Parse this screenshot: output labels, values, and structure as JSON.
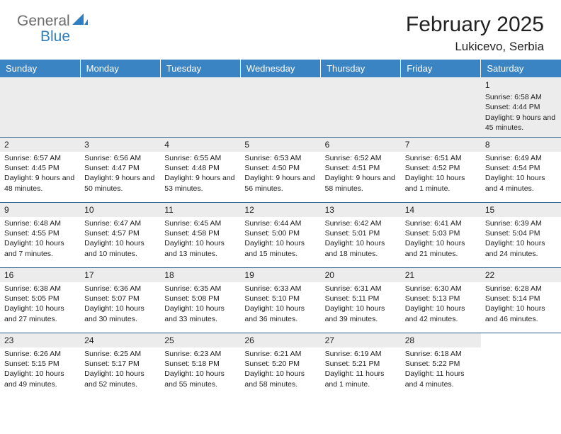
{
  "logo": {
    "text1": "General",
    "text2": "Blue",
    "icon_color": "#2d7fc1"
  },
  "title": "February 2025",
  "location": "Lukicevo, Serbia",
  "colors": {
    "header_bg": "#3b84c4",
    "header_text": "#ffffff",
    "daynum_bg": "#ececec",
    "cell_border": "#2d5f8f",
    "body_text": "#222222"
  },
  "day_headers": [
    "Sunday",
    "Monday",
    "Tuesday",
    "Wednesday",
    "Thursday",
    "Friday",
    "Saturday"
  ],
  "weeks": [
    [
      null,
      null,
      null,
      null,
      null,
      null,
      {
        "n": "1",
        "sunrise": "6:58 AM",
        "sunset": "4:44 PM",
        "daylight": "9 hours and 45 minutes."
      }
    ],
    [
      {
        "n": "2",
        "sunrise": "6:57 AM",
        "sunset": "4:45 PM",
        "daylight": "9 hours and 48 minutes."
      },
      {
        "n": "3",
        "sunrise": "6:56 AM",
        "sunset": "4:47 PM",
        "daylight": "9 hours and 50 minutes."
      },
      {
        "n": "4",
        "sunrise": "6:55 AM",
        "sunset": "4:48 PM",
        "daylight": "9 hours and 53 minutes."
      },
      {
        "n": "5",
        "sunrise": "6:53 AM",
        "sunset": "4:50 PM",
        "daylight": "9 hours and 56 minutes."
      },
      {
        "n": "6",
        "sunrise": "6:52 AM",
        "sunset": "4:51 PM",
        "daylight": "9 hours and 58 minutes."
      },
      {
        "n": "7",
        "sunrise": "6:51 AM",
        "sunset": "4:52 PM",
        "daylight": "10 hours and 1 minute."
      },
      {
        "n": "8",
        "sunrise": "6:49 AM",
        "sunset": "4:54 PM",
        "daylight": "10 hours and 4 minutes."
      }
    ],
    [
      {
        "n": "9",
        "sunrise": "6:48 AM",
        "sunset": "4:55 PM",
        "daylight": "10 hours and 7 minutes."
      },
      {
        "n": "10",
        "sunrise": "6:47 AM",
        "sunset": "4:57 PM",
        "daylight": "10 hours and 10 minutes."
      },
      {
        "n": "11",
        "sunrise": "6:45 AM",
        "sunset": "4:58 PM",
        "daylight": "10 hours and 13 minutes."
      },
      {
        "n": "12",
        "sunrise": "6:44 AM",
        "sunset": "5:00 PM",
        "daylight": "10 hours and 15 minutes."
      },
      {
        "n": "13",
        "sunrise": "6:42 AM",
        "sunset": "5:01 PM",
        "daylight": "10 hours and 18 minutes."
      },
      {
        "n": "14",
        "sunrise": "6:41 AM",
        "sunset": "5:03 PM",
        "daylight": "10 hours and 21 minutes."
      },
      {
        "n": "15",
        "sunrise": "6:39 AM",
        "sunset": "5:04 PM",
        "daylight": "10 hours and 24 minutes."
      }
    ],
    [
      {
        "n": "16",
        "sunrise": "6:38 AM",
        "sunset": "5:05 PM",
        "daylight": "10 hours and 27 minutes."
      },
      {
        "n": "17",
        "sunrise": "6:36 AM",
        "sunset": "5:07 PM",
        "daylight": "10 hours and 30 minutes."
      },
      {
        "n": "18",
        "sunrise": "6:35 AM",
        "sunset": "5:08 PM",
        "daylight": "10 hours and 33 minutes."
      },
      {
        "n": "19",
        "sunrise": "6:33 AM",
        "sunset": "5:10 PM",
        "daylight": "10 hours and 36 minutes."
      },
      {
        "n": "20",
        "sunrise": "6:31 AM",
        "sunset": "5:11 PM",
        "daylight": "10 hours and 39 minutes."
      },
      {
        "n": "21",
        "sunrise": "6:30 AM",
        "sunset": "5:13 PM",
        "daylight": "10 hours and 42 minutes."
      },
      {
        "n": "22",
        "sunrise": "6:28 AM",
        "sunset": "5:14 PM",
        "daylight": "10 hours and 46 minutes."
      }
    ],
    [
      {
        "n": "23",
        "sunrise": "6:26 AM",
        "sunset": "5:15 PM",
        "daylight": "10 hours and 49 minutes."
      },
      {
        "n": "24",
        "sunrise": "6:25 AM",
        "sunset": "5:17 PM",
        "daylight": "10 hours and 52 minutes."
      },
      {
        "n": "25",
        "sunrise": "6:23 AM",
        "sunset": "5:18 PM",
        "daylight": "10 hours and 55 minutes."
      },
      {
        "n": "26",
        "sunrise": "6:21 AM",
        "sunset": "5:20 PM",
        "daylight": "10 hours and 58 minutes."
      },
      {
        "n": "27",
        "sunrise": "6:19 AM",
        "sunset": "5:21 PM",
        "daylight": "11 hours and 1 minute."
      },
      {
        "n": "28",
        "sunrise": "6:18 AM",
        "sunset": "5:22 PM",
        "daylight": "11 hours and 4 minutes."
      },
      null
    ]
  ],
  "labels": {
    "sunrise": "Sunrise:",
    "sunset": "Sunset:",
    "daylight": "Daylight:"
  }
}
